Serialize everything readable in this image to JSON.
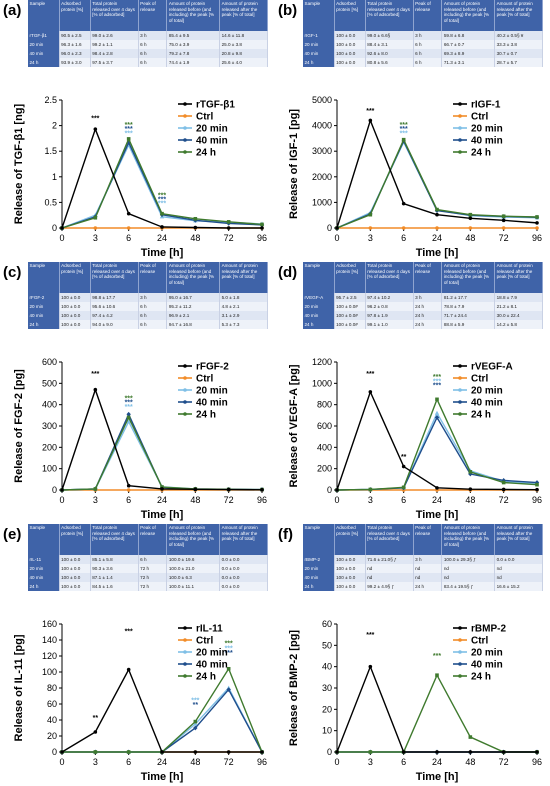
{
  "chart_data": [
    {
      "panel": "(a)",
      "type": "line",
      "ylabel": "Release of TGF-β1 [ng]",
      "xlabel": "Time [h]",
      "ylim": [
        0,
        2.5
      ],
      "yticks": [
        "0",
        "0.5",
        "1",
        "1.5",
        "2",
        "2.5"
      ],
      "x": [
        "0",
        "3",
        "6",
        "24",
        "48",
        "72",
        "96"
      ],
      "table": {
        "headers": [
          "Sample",
          "Adsorbed protein [%]",
          "Total protein released over 4 days [% of adsorbed]",
          "Peak of release",
          "Amount of protein released before (and including) the peak [% of total]",
          "Amount of protein released after the peak [% of total]"
        ],
        "rows": [
          [
            "rTGF-β1",
            "90.5 ± 2.5",
            "99.0 ± 2.6",
            "3 h",
            "85.4 ± 9.5",
            "14.6 ± 11.8"
          ],
          [
            "20 min",
            "96.3 ± 1.6",
            "99.2 ± 1.1",
            "6 h",
            "75.0 ± 3.9",
            "25.0 ± 3.8"
          ],
          [
            "40 min",
            "96.0 ± 2.3",
            "98.4 ± 2.8",
            "6 h",
            "79.2 ± 7.8",
            "20.8 ± 9.8"
          ],
          [
            "24 h",
            "93.9 ± 3.0",
            "97.5 ± 3.7",
            "6 h",
            "74.4 ± 1.9",
            "25.6 ± 4.0"
          ]
        ]
      },
      "series": [
        {
          "name": "rTGF-β1",
          "values": [
            0,
            1.93,
            0.28,
            0.02,
            0.01,
            0.0,
            0.0
          ]
        },
        {
          "name": "Ctrl",
          "values": [
            0,
            0,
            0,
            0,
            0,
            0,
            0
          ]
        },
        {
          "name": "20 min",
          "values": [
            0,
            0.25,
            1.62,
            0.22,
            0.14,
            0.11,
            0.08
          ]
        },
        {
          "name": "40 min",
          "values": [
            0,
            0.22,
            1.67,
            0.26,
            0.15,
            0.09,
            0.06
          ]
        },
        {
          "name": "24 h",
          "values": [
            0,
            0.2,
            1.74,
            0.28,
            0.18,
            0.12,
            0.07
          ]
        }
      ],
      "annotations": [
        {
          "x": "3",
          "y": 2.1,
          "text": "***",
          "color": "#000000"
        },
        {
          "x": "6",
          "y": 1.97,
          "text": "***",
          "color": "#3f7a2e"
        },
        {
          "x": "6",
          "y": 1.89,
          "text": "***",
          "color": "#1f4e8c"
        },
        {
          "x": "6",
          "y": 1.81,
          "text": "***",
          "color": "#7fbfe6"
        },
        {
          "x": "24",
          "y": 0.6,
          "text": "***",
          "color": "#3f7a2e"
        },
        {
          "x": "24",
          "y": 0.52,
          "text": "***",
          "color": "#1f4e8c"
        },
        {
          "x": "24",
          "y": 0.44,
          "text": "***",
          "color": "#7fbfe6"
        }
      ]
    },
    {
      "panel": "(b)",
      "type": "line",
      "ylabel": "Release of IGF-1 [pg]",
      "xlabel": "Time [h]",
      "ylim": [
        0,
        5000
      ],
      "yticks": [
        "0",
        "1000",
        "2000",
        "3000",
        "4000",
        "5000"
      ],
      "x": [
        "0",
        "3",
        "6",
        "24",
        "48",
        "72",
        "96"
      ],
      "table": {
        "headers": [
          "Sample",
          "Adsorbed protein [%]",
          "Total protein released over 4 days [% of adsorbed]",
          "Peak of release",
          "Amount of protein released before (and including) the peak [% of total]",
          "Amount of protein released after the peak [% of total]"
        ],
        "rows": [
          [
            "rIGF-1",
            "100 ± 0.0",
            "99.0 ± 6.6§",
            "3 h",
            "59.8 ± 6.8",
            "40.2 ± 0.5§ ¥"
          ],
          [
            "20 min",
            "100 ± 0.0",
            "88.4 ± 3.1",
            "6 h",
            "66.7 ± 0.7",
            "33.3 ± 3.8"
          ],
          [
            "40 min",
            "100 ± 0.0",
            "92.6 ± 8.0",
            "6 h",
            "69.3 ± 8.9",
            "30.7 ± 0.7"
          ],
          [
            "24 h",
            "100 ± 0.0",
            "80.8 ± 5.6",
            "6 h",
            "71.3 ± 3.1",
            "28.7 ± 5.7"
          ]
        ]
      },
      "series": [
        {
          "name": "rIGF-1",
          "values": [
            0,
            4200,
            950,
            520,
            380,
            300,
            200
          ]
        },
        {
          "name": "Ctrl",
          "values": [
            0,
            0,
            0,
            0,
            0,
            0,
            0
          ]
        },
        {
          "name": "20 min",
          "values": [
            0,
            600,
            3350,
            700,
            480,
            430,
            400
          ]
        },
        {
          "name": "40 min",
          "values": [
            0,
            550,
            3400,
            680,
            500,
            450,
            420
          ]
        },
        {
          "name": "24 h",
          "values": [
            0,
            520,
            3450,
            720,
            520,
            460,
            430
          ]
        }
      ],
      "annotations": [
        {
          "x": "3",
          "y": 4500,
          "text": "***",
          "color": "#000000"
        },
        {
          "x": "6",
          "y": 3950,
          "text": "***",
          "color": "#3f7a2e"
        },
        {
          "x": "6",
          "y": 3780,
          "text": "***",
          "color": "#1f4e8c"
        },
        {
          "x": "6",
          "y": 3610,
          "text": "***",
          "color": "#7fbfe6"
        }
      ]
    },
    {
      "panel": "(c)",
      "type": "line",
      "ylabel": "Release of FGF-2 [pg]",
      "xlabel": "Time [h]",
      "ylim": [
        0,
        600
      ],
      "yticks": [
        "0",
        "100",
        "200",
        "300",
        "400",
        "500",
        "600"
      ],
      "x": [
        "0",
        "3",
        "6",
        "24",
        "48",
        "72",
        "96"
      ],
      "table": {
        "headers": [
          "Sample",
          "Adsorbed protein [%]",
          "Total protein released over 4 days [% of adsorbed]",
          "Peak of release",
          "Amount of protein released before (and including) the peak [% of total]",
          "Amount of protein released after the peak [% of total]"
        ],
        "rows": [
          [
            "rFGF-2",
            "100 ± 0.0",
            "98.8 ± 17.7",
            "3 h",
            "95.0 ± 16.7",
            "5.0 ± 1.8"
          ],
          [
            "20 min",
            "100 ± 0.0",
            "95.6 ± 10.6",
            "6 h",
            "95.2 ± 11.2",
            "4.8 ± 2.1"
          ],
          [
            "40 min",
            "100 ± 0.0",
            "97.4 ± 4.2",
            "6 h",
            "96.9 ± 2.1",
            "3.1 ± 2.9"
          ],
          [
            "24 h",
            "100 ± 0.0",
            "94.0 ± 9.0",
            "6 h",
            "94.7 ± 16.8",
            "5.3 ± 7.3"
          ]
        ]
      },
      "series": [
        {
          "name": "rFGF-2",
          "values": [
            0,
            470,
            20,
            5,
            3,
            2,
            1
          ]
        },
        {
          "name": "Ctrl",
          "values": [
            0,
            0,
            0,
            0,
            0,
            0,
            0
          ]
        },
        {
          "name": "20 min",
          "values": [
            0,
            5,
            320,
            15,
            5,
            3,
            2
          ]
        },
        {
          "name": "40 min",
          "values": [
            0,
            5,
            355,
            12,
            4,
            3,
            2
          ]
        },
        {
          "name": "24 h",
          "values": [
            0,
            5,
            340,
            14,
            5,
            3,
            2
          ]
        }
      ],
      "annotations": [
        {
          "x": "3",
          "y": 535,
          "text": "***",
          "color": "#000000"
        },
        {
          "x": "6",
          "y": 420,
          "text": "***",
          "color": "#3f7a2e"
        },
        {
          "x": "6",
          "y": 400,
          "text": "***",
          "color": "#1f4e8c"
        },
        {
          "x": "6",
          "y": 380,
          "text": "***",
          "color": "#7fbfe6"
        }
      ]
    },
    {
      "panel": "(d)",
      "type": "line",
      "ylabel": "Release of VEGF-A [pg]",
      "xlabel": "Time [h]",
      "ylim": [
        0,
        1200
      ],
      "yticks": [
        "0",
        "200",
        "400",
        "600",
        "800",
        "1000",
        "1200"
      ],
      "x": [
        "0",
        "3",
        "6",
        "24",
        "48",
        "72",
        "96"
      ],
      "table": {
        "headers": [
          "Sample",
          "Adsorbed protein [%]",
          "Total protein released over 4 days [% of adsorbed]",
          "Peak of release",
          "Amount of protein released before (and including) the peak [% of total]",
          "Amount of protein released after the peak [% of total]"
        ],
        "rows": [
          [
            "rVEGF-A",
            "95.7 ± 2.5",
            "97.4 ± 10.2",
            "3 h",
            "81.2 ± 17.7",
            "18.8 ± 7.9"
          ],
          [
            "20 min",
            "100 ± 0.0#",
            "96.2 ± 0.8",
            "24 h",
            "78.8 ± 7.9",
            "21.2 ± 8.1"
          ],
          [
            "40 min",
            "100 ± 0.0#",
            "97.8 ± 1.9",
            "24 h",
            "71.7 ± 24.4",
            "30.0 ± 22.4"
          ],
          [
            "24 h",
            "100 ± 0.0#",
            "99.1 ± 1.0",
            "24 h",
            "88.8 ± 5.9",
            "14.2 ± 5.8"
          ]
        ]
      },
      "series": [
        {
          "name": "rVEGF-A",
          "values": [
            0,
            920,
            220,
            20,
            8,
            5,
            3
          ]
        },
        {
          "name": "Ctrl",
          "values": [
            0,
            0,
            0,
            0,
            0,
            0,
            0
          ]
        },
        {
          "name": "20 min",
          "values": [
            0,
            5,
            20,
            720,
            180,
            80,
            60
          ]
        },
        {
          "name": "40 min",
          "values": [
            0,
            5,
            20,
            680,
            150,
            90,
            70
          ]
        },
        {
          "name": "24 h",
          "values": [
            0,
            5,
            25,
            850,
            170,
            70,
            50
          ]
        }
      ],
      "annotations": [
        {
          "x": "3",
          "y": 1070,
          "text": "***",
          "color": "#000000"
        },
        {
          "x": "6",
          "y": 290,
          "text": "**",
          "color": "#000000"
        },
        {
          "x": "24",
          "y": 1040,
          "text": "***",
          "color": "#3f7a2e"
        },
        {
          "x": "24",
          "y": 1000,
          "text": "***",
          "color": "#7fbfe6"
        },
        {
          "x": "24",
          "y": 960,
          "text": "***",
          "color": "#1f4e8c"
        }
      ]
    },
    {
      "panel": "(e)",
      "type": "line",
      "ylabel": "Release of IL-11 [pg]",
      "xlabel": "Time [h]",
      "ylim": [
        0,
        160
      ],
      "yticks": [
        "0",
        "20",
        "40",
        "60",
        "80",
        "100",
        "120",
        "140",
        "160"
      ],
      "x": [
        "0",
        "3",
        "6",
        "24",
        "48",
        "72",
        "96"
      ],
      "table": {
        "headers": [
          "Sample",
          "Adsorbed protein [%]",
          "Total protein released over 4 days [% of adsorbed]",
          "Peak of release",
          "Amount of protein released before (and including) the peak [% of total]",
          "Amount of protein released after the peak [% of total]"
        ],
        "rows": [
          [
            "rIL-11",
            "100 ± 0.0",
            "85.1 ± 5.8",
            "6 h",
            "100.0 ± 19.6",
            "0.0 ± 0.0"
          ],
          [
            "20 min",
            "100 ± 0.0",
            "90.3 ± 3.6",
            "72 h",
            "100.0 ± 21.0",
            "0.0 ± 0.0"
          ],
          [
            "40 min",
            "100 ± 0.0",
            "87.1 ± 1.4",
            "72 h",
            "100.0 ± 6.3",
            "0.0 ± 0.0"
          ],
          [
            "24 h",
            "100 ± 0.0",
            "84.5 ± 1.6",
            "72 h",
            "100.0 ± 11.1",
            "0.0 ± 0.0"
          ]
        ]
      },
      "series": [
        {
          "name": "rIL-11",
          "values": [
            0,
            25,
            103,
            0,
            0,
            0,
            0
          ]
        },
        {
          "name": "Ctrl",
          "values": [
            0,
            0,
            0,
            0,
            0,
            0,
            0
          ]
        },
        {
          "name": "20 min",
          "values": [
            0,
            0,
            0,
            0,
            35,
            80,
            0
          ]
        },
        {
          "name": "40 min",
          "values": [
            0,
            0,
            0,
            0,
            30,
            78,
            0
          ]
        },
        {
          "name": "24 h",
          "values": [
            0,
            0,
            0,
            0,
            38,
            104,
            0
          ]
        }
      ],
      "annotations": [
        {
          "x": "3",
          "y": 40,
          "text": "**",
          "color": "#000000"
        },
        {
          "x": "6",
          "y": 148,
          "text": "***",
          "color": "#000000"
        },
        {
          "x": "48",
          "y": 62,
          "text": "***",
          "color": "#7fbfe6"
        },
        {
          "x": "48",
          "y": 56,
          "text": "**",
          "color": "#1f4e8c"
        },
        {
          "x": "72",
          "y": 133,
          "text": "***",
          "color": "#3f7a2e"
        },
        {
          "x": "72",
          "y": 127,
          "text": "***",
          "color": "#7fbfe6"
        },
        {
          "x": "72",
          "y": 121,
          "text": "***",
          "color": "#1f4e8c"
        }
      ]
    },
    {
      "panel": "(f)",
      "type": "line",
      "ylabel": "Release of BMP-2 [pg]",
      "xlabel": "Time [h]",
      "ylim": [
        0,
        60
      ],
      "yticks": [
        "0",
        "10",
        "20",
        "30",
        "40",
        "50",
        "60"
      ],
      "x": [
        "0",
        "3",
        "6",
        "24",
        "48",
        "72",
        "96"
      ],
      "table": {
        "headers": [
          "Sample",
          "Adsorbed protein [%]",
          "Total protein released over 4 days [% of adsorbed]",
          "Peak of release",
          "Amount of protein released before (and including) the peak [% of total]",
          "Amount of protein released after the peak [% of total]"
        ],
        "rows": [
          [
            "rBMP-2",
            "100 ± 0.0",
            "71.6 ± 21.0§ ƒ",
            "3 h",
            "100.0 ± 29.3§ ƒ",
            "0.0 ± 0.0"
          ],
          [
            "20 min",
            "100 ± 0.0",
            "nd",
            "nd",
            "nd",
            "nd"
          ],
          [
            "40 min",
            "100 ± 0.0",
            "nd",
            "nd",
            "nd",
            "nd"
          ],
          [
            "24 h",
            "100 ± 0.0",
            "99.2 ± 4.9§ ƒ",
            "24 h",
            "83.4 ± 19.5§ ƒ",
            "16.6 ± 15.2"
          ]
        ]
      },
      "series": [
        {
          "name": "rBMP-2",
          "values": [
            0,
            40,
            0,
            0,
            0,
            0,
            0
          ]
        },
        {
          "name": "Ctrl",
          "values": [
            0,
            0,
            0,
            0,
            0,
            0,
            0
          ]
        },
        {
          "name": "20 min",
          "values": [
            0,
            0,
            0,
            0,
            0,
            0,
            0
          ]
        },
        {
          "name": "40 min",
          "values": [
            0,
            0,
            0,
            0,
            0,
            0,
            0
          ]
        },
        {
          "name": "24 h",
          "values": [
            0,
            0,
            0,
            36,
            7,
            0,
            0
          ]
        }
      ],
      "annotations": [
        {
          "x": "3",
          "y": 54,
          "text": "***",
          "color": "#000000"
        },
        {
          "x": "24",
          "y": 44,
          "text": "***",
          "color": "#3f7a2e"
        }
      ]
    }
  ],
  "colors": {
    "series": [
      "#000000",
      "#f28c28",
      "#7fbfe6",
      "#1f4e8c",
      "#3f7a2e"
    ],
    "table_header": "#3f63a8"
  }
}
